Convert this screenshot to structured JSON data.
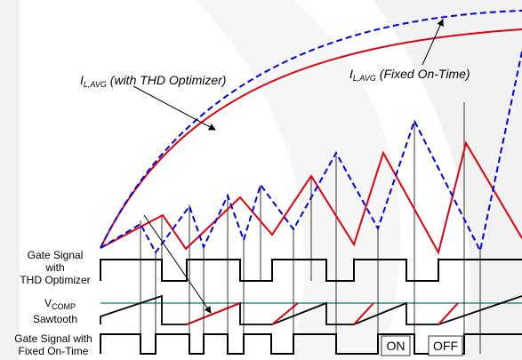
{
  "annotations": {
    "thd_main": "I",
    "thd_sub": "L,AVG",
    "thd_text": " (with THD Optimizer)",
    "fixed_main": "I",
    "fixed_sub": "L,AVG",
    "fixed_text": " (Fixed On-Time)"
  },
  "row_labels": {
    "gate_thd": [
      "Gate Signal",
      "with",
      "THD Optimizer"
    ],
    "vcomp_main": "V",
    "vcomp_sub": "COMP",
    "sawtooth": "Sawtooth",
    "gate_fixed": [
      "Gate Signal with",
      "Fixed On-Time"
    ]
  },
  "state_labels": {
    "on": "ON",
    "off": "OFF"
  },
  "colors": {
    "thd_optimizer": "#e0000f",
    "fixed_on_time": "#0000dd",
    "vcomp": "#007a6e",
    "black": "#000000",
    "background_watermark": "#f0f0f0"
  }
}
